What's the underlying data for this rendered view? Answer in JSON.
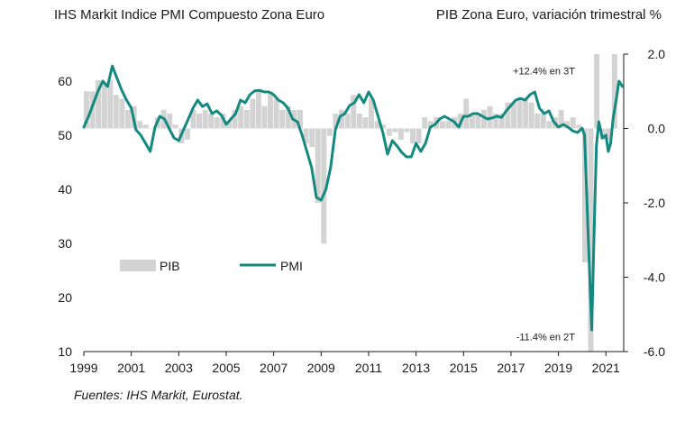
{
  "chart_data": {
    "type": "bar+line",
    "title_left": "IHS Markit Indice PMI Compuesto Zona Euro",
    "title_right": "PIB Zona Euro, variación trimestral %",
    "source": "Fuentes: IHS Markit, Eurostat.",
    "left_axis": {
      "ylim": [
        10,
        65
      ],
      "ticks": [
        "10",
        "20",
        "30",
        "40",
        "50",
        "60"
      ]
    },
    "right_axis": {
      "ylim": [
        -6.0,
        2.0
      ],
      "ticks": [
        "-6.0",
        "-4.0",
        "-2.0",
        "0.0",
        "2.0"
      ]
    },
    "x_axis": {
      "xlim": [
        1999.0,
        2021.75
      ],
      "ticks": [
        "1999",
        "2001",
        "2003",
        "2005",
        "2007",
        "2009",
        "2011",
        "2013",
        "2015",
        "2017",
        "2019",
        "2021"
      ]
    },
    "legend": [
      {
        "name": "PIB",
        "color": "#d3d3d3"
      },
      {
        "name": "PMI",
        "color": "#13897f"
      }
    ],
    "annotations": [
      {
        "text": "+12.4% en 3T",
        "x": 2020.0,
        "y": 1.55
      },
      {
        "text": "-11.4% en 2T",
        "x": 2020.0,
        "y": -5.6
      }
    ],
    "pib": {
      "name": "PIB",
      "color": "#d3d3d3",
      "x": [
        1999.0,
        1999.25,
        1999.5,
        1999.75,
        2000.0,
        2000.25,
        2000.5,
        2000.75,
        2001.0,
        2001.25,
        2001.5,
        2001.75,
        2002.0,
        2002.25,
        2002.5,
        2002.75,
        2003.0,
        2003.25,
        2003.5,
        2003.75,
        2004.0,
        2004.25,
        2004.5,
        2004.75,
        2005.0,
        2005.25,
        2005.5,
        2005.75,
        2006.0,
        2006.25,
        2006.5,
        2006.75,
        2007.0,
        2007.25,
        2007.5,
        2007.75,
        2008.0,
        2008.25,
        2008.5,
        2008.75,
        2009.0,
        2009.25,
        2009.5,
        2009.75,
        2010.0,
        2010.25,
        2010.5,
        2010.75,
        2011.0,
        2011.25,
        2011.5,
        2011.75,
        2012.0,
        2012.25,
        2012.5,
        2012.75,
        2013.0,
        2013.25,
        2013.5,
        2013.75,
        2014.0,
        2014.25,
        2014.5,
        2014.75,
        2015.0,
        2015.25,
        2015.5,
        2015.75,
        2016.0,
        2016.25,
        2016.5,
        2016.75,
        2017.0,
        2017.25,
        2017.5,
        2017.75,
        2018.0,
        2018.25,
        2018.5,
        2018.75,
        2019.0,
        2019.25,
        2019.5,
        2019.75,
        2020.0,
        2020.25,
        2020.5,
        2020.75,
        2021.0,
        2021.25
      ],
      "values": [
        1.0,
        1.0,
        1.3,
        1.2,
        1.3,
        0.9,
        0.8,
        0.5,
        0.6,
        0.2,
        0.1,
        0.0,
        0.3,
        0.5,
        0.4,
        0.1,
        -0.4,
        -0.3,
        0.5,
        0.4,
        0.5,
        0.4,
        0.3,
        0.4,
        0.2,
        0.5,
        0.6,
        0.5,
        0.8,
        1.0,
        0.6,
        1.0,
        0.8,
        0.5,
        0.6,
        0.5,
        0.5,
        -0.4,
        -0.5,
        -2.0,
        -3.1,
        -0.2,
        0.4,
        0.5,
        0.4,
        0.9,
        0.4,
        0.3,
        0.8,
        0.2,
        0.1,
        -0.2,
        -0.1,
        -0.3,
        -0.1,
        -0.4,
        -0.4,
        0.3,
        0.2,
        0.3,
        0.2,
        0.2,
        0.3,
        0.4,
        0.8,
        0.4,
        0.4,
        0.5,
        0.6,
        0.4,
        0.4,
        0.7,
        0.7,
        0.8,
        0.8,
        0.7,
        0.4,
        0.4,
        0.2,
        0.3,
        0.5,
        0.2,
        0.3,
        0.1,
        -3.6,
        -11.4,
        12.4,
        -0.3,
        -0.3,
        2.2
      ]
    },
    "pmi": {
      "name": "PMI",
      "color": "#13897f",
      "x": [
        1999.0,
        1999.2,
        1999.4,
        1999.6,
        1999.8,
        2000.0,
        2000.2,
        2000.4,
        2000.6,
        2000.8,
        2001.0,
        2001.2,
        2001.4,
        2001.6,
        2001.8,
        2002.0,
        2002.2,
        2002.4,
        2002.6,
        2002.8,
        2003.0,
        2003.2,
        2003.4,
        2003.6,
        2003.8,
        2004.0,
        2004.2,
        2004.4,
        2004.6,
        2004.8,
        2005.0,
        2005.2,
        2005.4,
        2005.6,
        2005.8,
        2006.0,
        2006.2,
        2006.4,
        2006.6,
        2006.8,
        2007.0,
        2007.2,
        2007.4,
        2007.6,
        2007.8,
        2008.0,
        2008.2,
        2008.4,
        2008.6,
        2008.8,
        2009.0,
        2009.2,
        2009.4,
        2009.6,
        2009.8,
        2010.0,
        2010.2,
        2010.4,
        2010.6,
        2010.8,
        2011.0,
        2011.2,
        2011.4,
        2011.6,
        2011.8,
        2012.0,
        2012.2,
        2012.4,
        2012.6,
        2012.8,
        2013.0,
        2013.2,
        2013.4,
        2013.6,
        2013.8,
        2014.0,
        2014.2,
        2014.4,
        2014.6,
        2014.8,
        2015.0,
        2015.2,
        2015.4,
        2015.6,
        2015.8,
        2016.0,
        2016.2,
        2016.4,
        2016.6,
        2016.8,
        2017.0,
        2017.2,
        2017.4,
        2017.6,
        2017.8,
        2018.0,
        2018.2,
        2018.4,
        2018.6,
        2018.8,
        2019.0,
        2019.2,
        2019.4,
        2019.6,
        2019.8,
        2020.0,
        2020.1,
        2020.25,
        2020.4,
        2020.5,
        2020.6,
        2020.7,
        2020.85,
        2021.0,
        2021.1,
        2021.2,
        2021.3,
        2021.45,
        2021.55,
        2021.7
      ],
      "values": [
        51.5,
        53.5,
        55.8,
        58.2,
        60.0,
        59.0,
        62.8,
        60.5,
        58.3,
        56.5,
        55.0,
        51.0,
        50.0,
        48.5,
        47.0,
        51.5,
        53.5,
        53.0,
        51.2,
        49.5,
        49.0,
        51.0,
        53.0,
        55.0,
        56.5,
        55.3,
        55.8,
        54.0,
        54.5,
        53.7,
        52.0,
        53.0,
        54.0,
        56.5,
        56.0,
        57.5,
        58.2,
        58.3,
        58.0,
        58.0,
        57.5,
        56.5,
        56.0,
        55.0,
        53.0,
        52.5,
        50.0,
        47.0,
        44.0,
        38.5,
        38.0,
        40.0,
        44.0,
        51.0,
        53.5,
        54.0,
        55.5,
        56.0,
        57.5,
        56.0,
        58.0,
        56.5,
        53.5,
        50.5,
        46.5,
        49.0,
        48.0,
        46.8,
        46.0,
        46.0,
        48.5,
        47.0,
        48.5,
        51.5,
        52.0,
        53.0,
        53.5,
        53.0,
        52.5,
        51.5,
        53.5,
        53.5,
        54.0,
        54.0,
        53.5,
        53.0,
        53.2,
        53.5,
        53.3,
        54.5,
        55.5,
        56.5,
        56.8,
        56.5,
        57.5,
        58.0,
        55.0,
        54.0,
        54.5,
        52.5,
        51.5,
        52.0,
        51.5,
        50.8,
        50.5,
        51.3,
        50.0,
        32.0,
        14.0,
        31.5,
        48.0,
        52.5,
        49.5,
        50.0,
        47.0,
        48.5,
        53.0,
        57.0,
        60.0,
        59.0
      ]
    }
  }
}
